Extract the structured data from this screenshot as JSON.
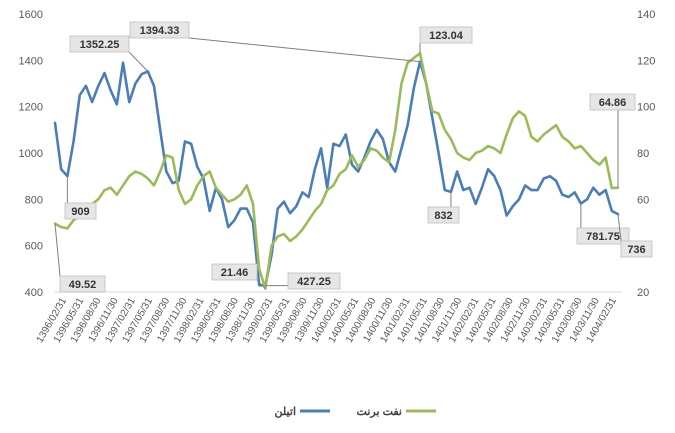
{
  "chart_data": {
    "type": "line",
    "title": "",
    "xlabel": "",
    "ylabel_left": "",
    "ylabel_right": "",
    "left_ylim": [
      400,
      1600
    ],
    "left_yticks": [
      400,
      600,
      800,
      1000,
      1200,
      1400,
      1600
    ],
    "right_ylim": [
      20,
      140
    ],
    "right_yticks": [
      20,
      40,
      60,
      80,
      100,
      120,
      140
    ],
    "grid": false,
    "legend_position": "bottom",
    "x_tick_labels": [
      "1396/02/31",
      "1396/05/31",
      "1396/08/30",
      "1396/11/30",
      "1397/02/31",
      "1397/05/31",
      "1397/08/30",
      "1397/11/30",
      "1398/02/31",
      "1398/05/31",
      "1398/08/30",
      "1398/11/30",
      "1399/02/31",
      "1399/05/31",
      "1399/08/30",
      "1399/11/30",
      "1400/02/31",
      "1400/05/31",
      "1400/08/30",
      "1400/11/30",
      "1401/02/31",
      "1401/05/31",
      "1401/08/30",
      "1401/11/30",
      "1402/02/31",
      "1402/05/31",
      "1402/08/30",
      "1402/11/30",
      "1403/02/31",
      "1403/05/31",
      "1403/08/30",
      "1403/11/30",
      "1404/02/31"
    ],
    "series": [
      {
        "name": "اتیلن",
        "axis": "left",
        "color": "#4a7ebb",
        "values": [
          1130,
          930,
          900,
          1050,
          1250,
          1290,
          1220,
          1290,
          1345,
          1270,
          1210,
          1390,
          1220,
          1300,
          1340,
          1352.25,
          1290,
          1100,
          920,
          870,
          880,
          1050,
          1040,
          940,
          890,
          750,
          850,
          800,
          680,
          710,
          760,
          760,
          700,
          430,
          427.25,
          560,
          760,
          790,
          740,
          770,
          830,
          810,
          930,
          1020,
          850,
          1040,
          1030,
          1080,
          950,
          920,
          980,
          1050,
          1100,
          1060,
          960,
          920,
          1020,
          1120,
          1280,
          1394.33,
          1300,
          1150,
          1000,
          840,
          832,
          920,
          840,
          850,
          780,
          850,
          930,
          900,
          840,
          730,
          770,
          800,
          860,
          840,
          840,
          890,
          900,
          880,
          820,
          810,
          830,
          781.75,
          800,
          850,
          820,
          840,
          750,
          736
        ]
      },
      {
        "name": "نفت برنت",
        "axis": "right",
        "color": "#9bbb59",
        "values": [
          49.52,
          48,
          47.5,
          51,
          53,
          55,
          58,
          60,
          64,
          65,
          62,
          66,
          70,
          72,
          71,
          69,
          66,
          72,
          79,
          78,
          64,
          58,
          60,
          66,
          70,
          72,
          65,
          62,
          59,
          60,
          62,
          66,
          58,
          30,
          21.46,
          40,
          44,
          45,
          42,
          44,
          47,
          51,
          55,
          58,
          64,
          66,
          71,
          73,
          79,
          74,
          77,
          82,
          81,
          78,
          76,
          90,
          110,
          119,
          121,
          123.04,
          110,
          98,
          97,
          90,
          86,
          80,
          78,
          77,
          80,
          81,
          83,
          82,
          80,
          88,
          95,
          98,
          96,
          87,
          85,
          88,
          90,
          92,
          87,
          85,
          82,
          83,
          80,
          77,
          75,
          78,
          64.86,
          65
        ]
      }
    ],
    "annotations": [
      {
        "text": "1352.25"
      },
      {
        "text": "1394.33"
      },
      {
        "text": "123.04"
      },
      {
        "text": "909"
      },
      {
        "text": "64.86"
      },
      {
        "text": "832"
      },
      {
        "text": "781.75"
      },
      {
        "text": "736"
      },
      {
        "text": "21.46"
      },
      {
        "text": "427.25"
      },
      {
        "text": "49.52"
      }
    ]
  }
}
